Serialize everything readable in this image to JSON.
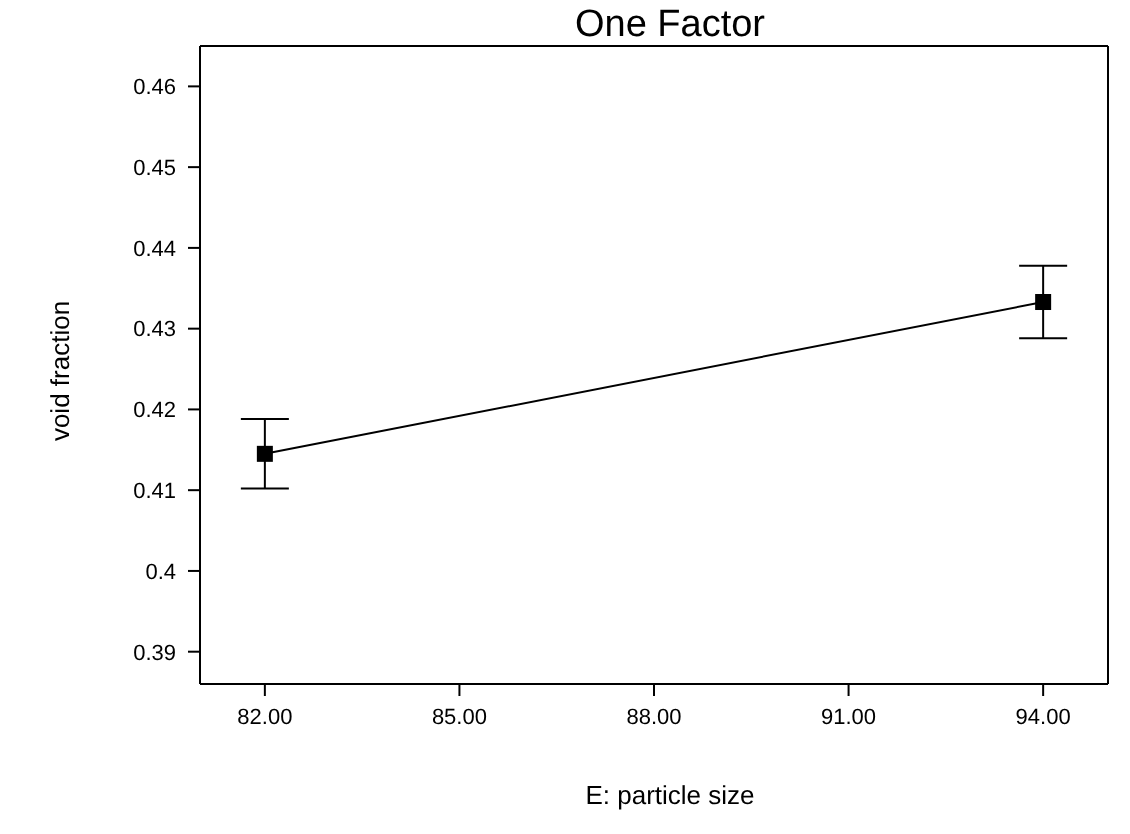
{
  "chart_data": {
    "type": "line",
    "title": "One Factor",
    "xlabel": "E: particle size",
    "ylabel": "void fraction",
    "x": [
      82,
      94
    ],
    "series": [
      {
        "color": "#000000",
        "values": [
          0.4145,
          0.4333
        ],
        "errors": [
          0.0043,
          0.0045
        ]
      }
    ],
    "xlim": [
      81,
      95
    ],
    "xticks": [
      {
        "value": 82,
        "label": "82.00"
      },
      {
        "value": 85,
        "label": "85.00"
      },
      {
        "value": 88,
        "label": "88.00"
      },
      {
        "value": 91,
        "label": "91.00"
      },
      {
        "value": 94,
        "label": "94.00"
      }
    ],
    "ylim": [
      0.386,
      0.465
    ],
    "yticks": [
      0.39,
      0.4,
      0.41,
      0.42,
      0.43,
      0.44,
      0.45,
      0.46
    ],
    "marker": "square",
    "line_style": "solid",
    "grid": false
  }
}
